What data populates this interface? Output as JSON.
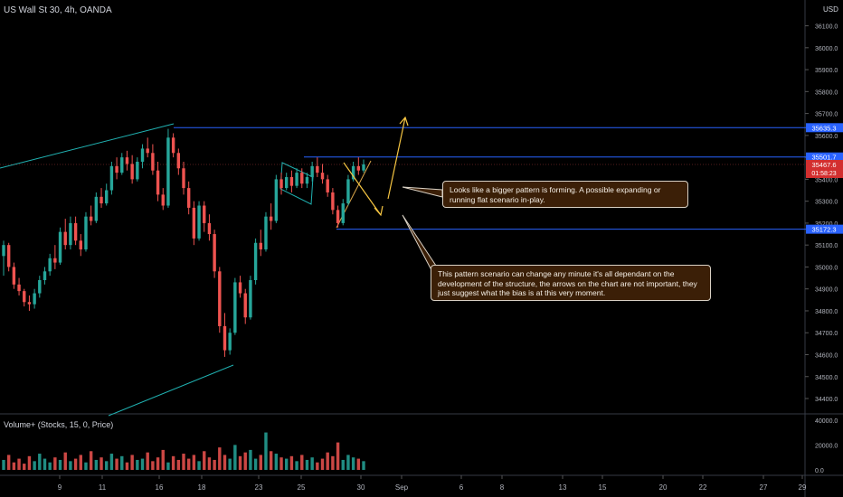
{
  "header": {
    "title": "US Wall St 30, 4h, OANDA",
    "currency": "USD"
  },
  "volume_label": "Volume+ (Stocks, 15, 0, Price)",
  "notes": {
    "upper": "Looks like a bigger pattern is forming. A possible expanding or running flat scenario in-play.",
    "lower": "This pattern scenario can change any minute it's all dependant on the development of the structure, the arrows on the chart are not important, they just suggest what the bias is at this very moment."
  },
  "colors": {
    "up": "#26a69a",
    "down": "#ef5350",
    "level": "#2962ff",
    "trend": "#20b2b2",
    "arrow": "#f5c542",
    "badge_blue": "#2962ff",
    "badge_red": "#d32f2f"
  },
  "chart_data": [
    {
      "type": "candlestick",
      "title": "US Wall St 30, 4h, OANDA",
      "ylim": [
        34330,
        36160
      ],
      "y_ticks": [
        "36100.0",
        "36000.0",
        "35900.0",
        "35800.0",
        "35700.0",
        "35600.0",
        "35500.0",
        "35400.0",
        "35300.0",
        "35200.0",
        "35100.0",
        "35000.0",
        "34900.0",
        "34800.0",
        "34700.0",
        "34600.0",
        "34500.0",
        "34400.0"
      ],
      "x_ticks": [
        "9",
        "11",
        "16",
        "18",
        "23",
        "25",
        "30",
        "Sep",
        "6",
        "8",
        "13",
        "15",
        "20",
        "22",
        "27",
        "29"
      ],
      "horizontal_levels": [
        35635.3,
        35501.7,
        35172.3
      ],
      "price_badges": [
        {
          "label": "35635.3",
          "value": 35635.3,
          "color": "#2962ff"
        },
        {
          "label": "35501.7",
          "value": 35501.7,
          "color": "#2962ff"
        },
        {
          "label": "35467.6",
          "sub": "01:58:23",
          "value": 35467.6,
          "color": "#d32f2f"
        },
        {
          "label": "35172.3",
          "value": 35172.3,
          "color": "#2962ff"
        }
      ],
      "last_price": 35467.6,
      "countdown": "01:58:23",
      "series": [
        {
          "values": [
            [
              35050,
              35120,
              34960,
              35100
            ],
            [
              35100,
              35110,
              34980,
              35000
            ],
            [
              35000,
              35020,
              34900,
              34920
            ],
            [
              34920,
              34950,
              34870,
              34890
            ],
            [
              34890,
              34900,
              34820,
              34840
            ],
            [
              34840,
              34870,
              34800,
              34830
            ],
            [
              34830,
              34900,
              34810,
              34880
            ],
            [
              34880,
              34960,
              34860,
              34940
            ],
            [
              34940,
              35000,
              34920,
              34980
            ],
            [
              34980,
              35060,
              34960,
              35040
            ],
            [
              35040,
              35100,
              34990,
              35020
            ],
            [
              35020,
              35180,
              35010,
              35160
            ],
            [
              35160,
              35220,
              35080,
              35100
            ],
            [
              35100,
              35230,
              35080,
              35200
            ],
            [
              35200,
              35230,
              35100,
              35120
            ],
            [
              35120,
              35150,
              35050,
              35080
            ],
            [
              35080,
              35250,
              35070,
              35230
            ],
            [
              35230,
              35280,
              35190,
              35210
            ],
            [
              35210,
              35340,
              35200,
              35320
            ],
            [
              35320,
              35360,
              35270,
              35290
            ],
            [
              35290,
              35380,
              35280,
              35350
            ],
            [
              35350,
              35480,
              35330,
              35460
            ],
            [
              35460,
              35500,
              35400,
              35430
            ],
            [
              35430,
              35520,
              35420,
              35500
            ],
            [
              35500,
              35530,
              35440,
              35470
            ],
            [
              35470,
              35510,
              35380,
              35400
            ],
            [
              35400,
              35500,
              35390,
              35480
            ],
            [
              35480,
              35560,
              35450,
              35540
            ],
            [
              35540,
              35590,
              35500,
              35520
            ],
            [
              35520,
              35560,
              35420,
              35440
            ],
            [
              35440,
              35480,
              35300,
              35330
            ],
            [
              35330,
              35360,
              35260,
              35280
            ],
            [
              35280,
              35630,
              35270,
              35590
            ],
            [
              35590,
              35610,
              35500,
              35520
            ],
            [
              35520,
              35540,
              35420,
              35450
            ],
            [
              35450,
              35480,
              35330,
              35360
            ],
            [
              35360,
              35390,
              35240,
              35270
            ],
            [
              35270,
              35300,
              35100,
              35130
            ],
            [
              35130,
              35300,
              35120,
              35280
            ],
            [
              35280,
              35300,
              35160,
              35200
            ],
            [
              35200,
              35240,
              35120,
              35150
            ],
            [
              35150,
              35170,
              34950,
              34980
            ],
            [
              34980,
              35000,
              34700,
              34730
            ],
            [
              34730,
              34790,
              34590,
              34620
            ],
            [
              34620,
              34720,
              34600,
              34700
            ],
            [
              34700,
              34950,
              34690,
              34930
            ],
            [
              34930,
              34960,
              34860,
              34880
            ],
            [
              34880,
              34900,
              34740,
              34770
            ],
            [
              34770,
              34960,
              34760,
              34940
            ],
            [
              34940,
              35130,
              34920,
              35110
            ],
            [
              35110,
              35170,
              35050,
              35080
            ],
            [
              35080,
              35250,
              35070,
              35230
            ],
            [
              35230,
              35290,
              35170,
              35210
            ],
            [
              35210,
              35420,
              35200,
              35400
            ],
            [
              35400,
              35430,
              35330,
              35360
            ],
            [
              35360,
              35430,
              35350,
              35410
            ],
            [
              35410,
              35440,
              35340,
              35370
            ],
            [
              35370,
              35450,
              35360,
              35430
            ],
            [
              35430,
              35450,
              35360,
              35380
            ],
            [
              35380,
              35430,
              35360,
              35410
            ],
            [
              35410,
              35480,
              35390,
              35460
            ],
            [
              35460,
              35500,
              35410,
              35430
            ],
            [
              35430,
              35470,
              35380,
              35400
            ],
            [
              35400,
              35420,
              35320,
              35340
            ],
            [
              35340,
              35360,
              35240,
              35260
            ],
            [
              35260,
              35280,
              35180,
              35200
            ],
            [
              35200,
              35310,
              35190,
              35290
            ],
            [
              35290,
              35420,
              35280,
              35400
            ],
            [
              35400,
              35480,
              35390,
              35460
            ],
            [
              35460,
              35500,
              35420,
              35440
            ],
            [
              35440,
              35490,
              35430,
              35468
            ]
          ]
        }
      ]
    },
    {
      "type": "bar",
      "title": "Volume+ (Stocks, 15, 0, Price)",
      "ylim": [
        0,
        42000
      ],
      "y_ticks": [
        "40000.0",
        "20000.0",
        "0.0"
      ],
      "series": [
        {
          "values": [
            8000,
            12000,
            6000,
            9000,
            5000,
            11000,
            7000,
            13000,
            9000,
            6000,
            10000,
            8000,
            14000,
            7000,
            9000,
            12000,
            6000,
            15000,
            8000,
            10000,
            7000,
            13000,
            9000,
            11000,
            6000,
            12000,
            8000,
            9000,
            14000,
            7000,
            10000,
            16000,
            6000,
            11000,
            8000,
            13000,
            9000,
            12000,
            7000,
            15000,
            10000,
            8000,
            18000,
            12000,
            9000,
            20000,
            11000,
            14000,
            16000,
            9000,
            12000,
            30000,
            15000,
            13000,
            10000,
            9000,
            11000,
            7000,
            12000,
            8000,
            10000,
            6000,
            9000,
            14000,
            11000,
            22000,
            8000,
            12000,
            10000,
            9000,
            7000
          ]
        }
      ]
    }
  ]
}
